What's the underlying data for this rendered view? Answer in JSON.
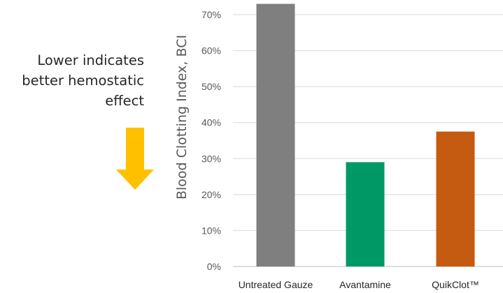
{
  "annotation": {
    "lines": [
      "Lower indicates",
      "better hemostatic",
      "effect"
    ],
    "arrow_color": "#FFC000"
  },
  "chart_data": {
    "type": "bar",
    "ylabel": "Blood Clotting Index, BCI",
    "xlabel": "",
    "categories": [
      "Untreated Gauze",
      "Avantamine",
      "QuikClot™"
    ],
    "values": [
      73,
      29,
      37.5
    ],
    "colors": [
      "#7F7F7F",
      "#009966",
      "#C55A11"
    ],
    "ylim": [
      0,
      72
    ],
    "yticks": [
      "0%",
      "10%",
      "20%",
      "30%",
      "40%",
      "50%",
      "60%",
      "70%"
    ],
    "ytick_values": [
      0,
      10,
      20,
      30,
      40,
      50,
      60,
      70
    ],
    "grid": true
  }
}
